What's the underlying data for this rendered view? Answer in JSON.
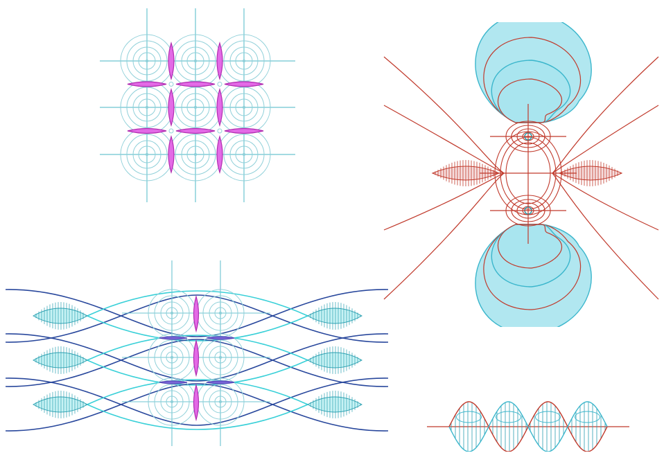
{
  "figure": {
    "palette": {
      "ring": "#8fd0d9",
      "axis": "#6cc4d0",
      "lens_fill": "#e36ae6",
      "lens_stroke": "#b02cb0",
      "field_red": "#c0392b",
      "contour_fill": "#a8e4ee",
      "contour_stroke": "#3bb6cc",
      "wave_dark": "#28479c",
      "wave_light": "#39d0d8",
      "hatch_fill": "#c8f3f5",
      "hatch_stroke": "#2a9fb0",
      "violet": "#7a66d8"
    },
    "panels": [
      {
        "id": "lattice",
        "rows": 3,
        "cols": 3,
        "rings_per_node": 4
      },
      {
        "id": "dipole",
        "poles": 2,
        "contour_levels": 3
      },
      {
        "id": "waves",
        "bands": 3,
        "ring_columns": 2
      },
      {
        "id": "sine-envelope",
        "periods": 4
      }
    ]
  }
}
